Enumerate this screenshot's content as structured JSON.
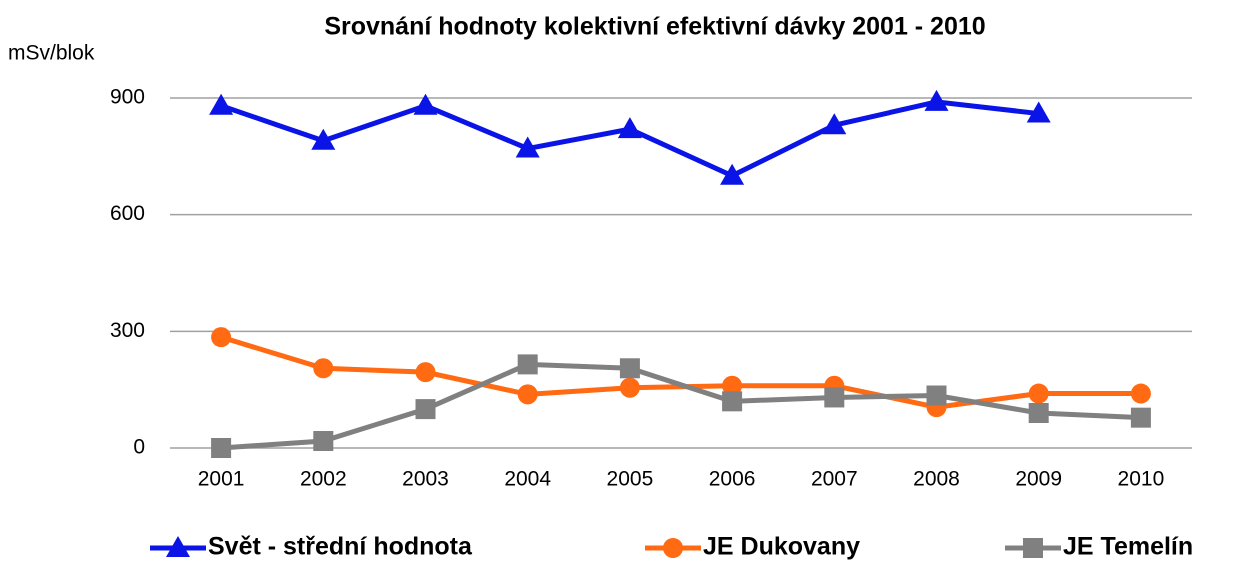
{
  "chart_data": {
    "type": "line",
    "title": "Srovnání hodnoty kolektivní efektivní dávky 2001 - 2010",
    "y_label": "mSv/blok",
    "categories": [
      "2001",
      "2002",
      "2003",
      "2004",
      "2005",
      "2006",
      "2007",
      "2008",
      "2009",
      "2010"
    ],
    "series": [
      {
        "name": "Svět - střední hodnota",
        "color": "#0a14e6",
        "marker": "triangle",
        "values": [
          880,
          790,
          880,
          770,
          820,
          700,
          830,
          890,
          860,
          null
        ]
      },
      {
        "name": "JE Dukovany",
        "color": "#ff6a12",
        "marker": "circle",
        "values": [
          285,
          205,
          195,
          138,
          155,
          160,
          160,
          105,
          140,
          140
        ]
      },
      {
        "name": "JE Temelín",
        "color": "#808080",
        "marker": "square",
        "values": [
          0,
          18,
          100,
          215,
          205,
          120,
          130,
          135,
          90,
          78
        ]
      }
    ],
    "ylim": [
      0,
      900
    ],
    "yticks": [
      0,
      300,
      600,
      900
    ],
    "grid": true,
    "legend": "bottom"
  }
}
